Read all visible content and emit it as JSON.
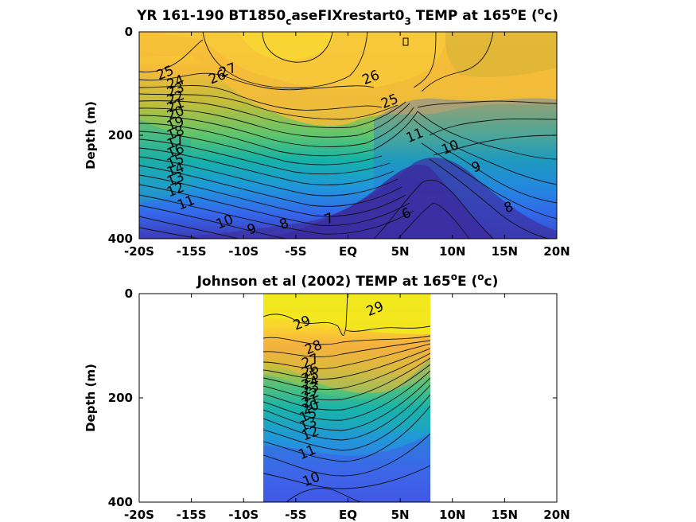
{
  "chart_data": [
    {
      "type": "contour",
      "title_parts": [
        "YR 161-190 BT1850",
        "c",
        "aseFIXrestart0",
        "3",
        " TEMP at 165",
        "o",
        "E (",
        "o",
        "c)"
      ],
      "ylabel": "Depth (m)",
      "ylim": [
        400,
        0
      ],
      "xlim": [
        -20,
        20
      ],
      "x_ticks": [
        -20,
        -15,
        -10,
        -5,
        0,
        5,
        10,
        15,
        20
      ],
      "x_tick_labels": [
        "-20S",
        "-15S",
        "-10S",
        "-5S",
        "EQ",
        "5N",
        "10N",
        "15N",
        "20N"
      ],
      "y_ticks": [
        0,
        200,
        400
      ],
      "y_tick_labels": [
        "0",
        "200",
        "400"
      ],
      "colormap": "parula",
      "color_range": [
        6,
        29
      ],
      "contour_labels": [
        {
          "text": "27",
          "x": -11.5,
          "y": 75
        },
        {
          "text": "26",
          "x": -12.5,
          "y": 88
        },
        {
          "text": "25",
          "x": -17.5,
          "y": 80
        },
        {
          "text": "24",
          "x": -16.5,
          "y": 98
        },
        {
          "text": "23",
          "x": -16.5,
          "y": 113
        },
        {
          "text": "22",
          "x": -16.5,
          "y": 128
        },
        {
          "text": "21",
          "x": -16.5,
          "y": 143
        },
        {
          "text": "20",
          "x": -16.5,
          "y": 158
        },
        {
          "text": "19",
          "x": -16.5,
          "y": 178
        },
        {
          "text": "18",
          "x": -16.5,
          "y": 196
        },
        {
          "text": "17",
          "x": -16.5,
          "y": 213
        },
        {
          "text": "16",
          "x": -16.5,
          "y": 231
        },
        {
          "text": "15",
          "x": -16.5,
          "y": 251
        },
        {
          "text": "14",
          "x": -16.5,
          "y": 267
        },
        {
          "text": "13",
          "x": -16.5,
          "y": 285
        },
        {
          "text": "12",
          "x": -16.5,
          "y": 306
        },
        {
          "text": "11",
          "x": -15.5,
          "y": 331
        },
        {
          "text": "10",
          "x": -11.8,
          "y": 368
        },
        {
          "text": "9",
          "x": -9.2,
          "y": 382
        },
        {
          "text": "8",
          "x": -6.1,
          "y": 372
        },
        {
          "text": "7",
          "x": -1.8,
          "y": 362
        },
        {
          "text": "6",
          "x": 5.6,
          "y": 352
        },
        {
          "text": "26",
          "x": 2.2,
          "y": 89
        },
        {
          "text": "25",
          "x": 4.0,
          "y": 135
        },
        {
          "text": "11",
          "x": 6.4,
          "y": 201
        },
        {
          "text": "10",
          "x": 9.8,
          "y": 224
        },
        {
          "text": "9",
          "x": 12.3,
          "y": 262
        },
        {
          "text": "8",
          "x": 15.4,
          "y": 340
        }
      ]
    },
    {
      "type": "contour",
      "title_parts": [
        "Johnson et al (2002) TEMP at 165",
        "o",
        "E (",
        "o",
        "c)"
      ],
      "ylabel": "Depth (m)",
      "ylim": [
        400,
        0
      ],
      "xlim": [
        -20,
        20
      ],
      "data_x_range": [
        -8,
        8
      ],
      "x_ticks": [
        -20,
        -15,
        -10,
        -5,
        0,
        5,
        10,
        15,
        20
      ],
      "x_tick_labels": [
        "-20S",
        "-15S",
        "-10S",
        "-5S",
        "EQ",
        "5N",
        "10N",
        "15N",
        "20N"
      ],
      "y_ticks": [
        0,
        200,
        400
      ],
      "y_tick_labels": [
        "0",
        "200",
        "400"
      ],
      "colormap": "parula",
      "color_range": [
        6,
        30
      ],
      "contour_labels": [
        {
          "text": "29",
          "x": -4.4,
          "y": 57
        },
        {
          "text": "29",
          "x": 2.6,
          "y": 30
        },
        {
          "text": "28",
          "x": -3.3,
          "y": 104
        },
        {
          "text": "27",
          "x": -3.6,
          "y": 130
        },
        {
          "text": "26",
          "x": -3.6,
          "y": 148
        },
        {
          "text": "25",
          "x": -3.6,
          "y": 160
        },
        {
          "text": "24",
          "x": -3.6,
          "y": 172
        },
        {
          "text": "23",
          "x": -3.6,
          "y": 183
        },
        {
          "text": "22",
          "x": -3.6,
          "y": 195
        },
        {
          "text": "21",
          "x": -3.6,
          "y": 207
        },
        {
          "text": "20",
          "x": -3.6,
          "y": 219
        },
        {
          "text": "15",
          "x": -3.8,
          "y": 234
        },
        {
          "text": "13",
          "x": -3.8,
          "y": 251
        },
        {
          "text": "12",
          "x": -3.6,
          "y": 269
        },
        {
          "text": "11",
          "x": -3.9,
          "y": 305
        },
        {
          "text": "10",
          "x": -3.5,
          "y": 357
        }
      ]
    }
  ]
}
